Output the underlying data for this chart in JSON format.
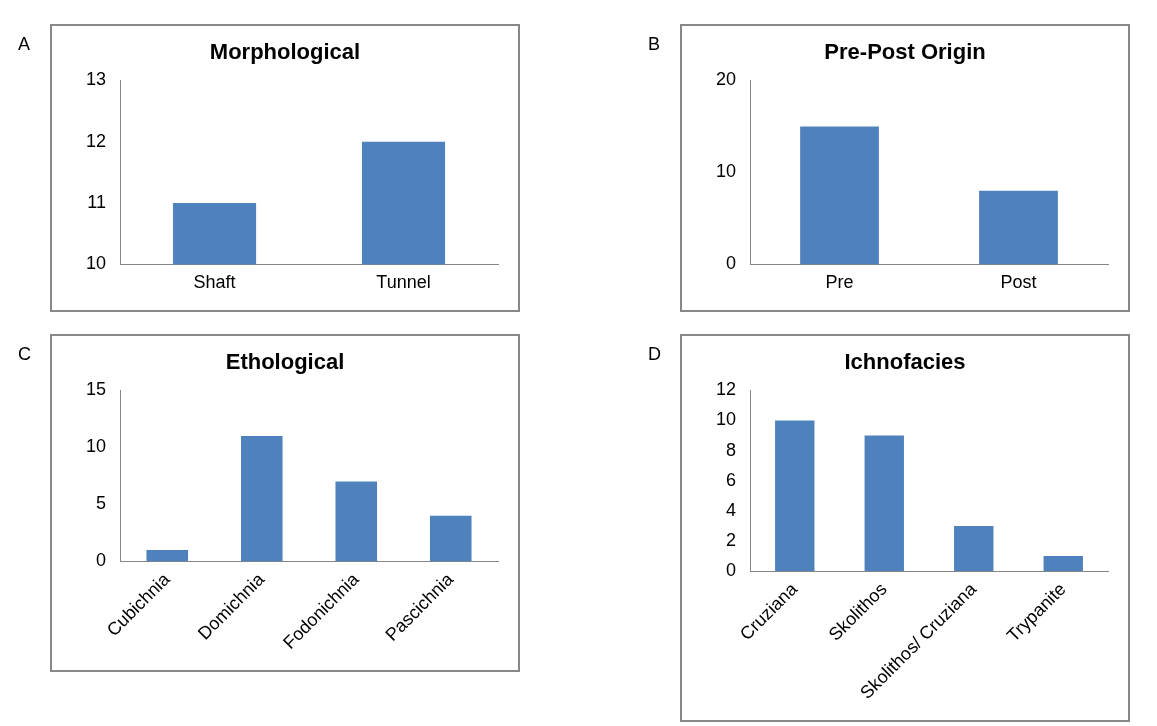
{
  "chart_data": [
    {
      "type": "bar",
      "title": "Morphological",
      "annotations": [
        "A"
      ],
      "categories": [
        "Shaft",
        "Tunnel"
      ],
      "values": [
        11,
        12
      ],
      "color": "#4f81bd",
      "ylim": [
        10,
        13
      ],
      "yticks": [
        10,
        11,
        12,
        13
      ],
      "grid": false,
      "legend": false
    },
    {
      "type": "bar",
      "title": "Pre-Post Origin",
      "annotations": [
        "B"
      ],
      "categories": [
        "Pre",
        "Post"
      ],
      "values": [
        15,
        8
      ],
      "color": "#4f81bd",
      "ylim": [
        0,
        20
      ],
      "yticks": [
        0,
        10,
        20
      ],
      "grid": false,
      "legend": false
    },
    {
      "type": "bar",
      "title": "Ethological",
      "annotations": [
        "C"
      ],
      "categories": [
        "Cubichnia",
        "Domichnia",
        "Fodonichnia",
        "Pascichnia"
      ],
      "values": [
        1,
        11,
        7,
        4
      ],
      "color": "#4f81bd",
      "ylim": [
        0,
        15
      ],
      "yticks": [
        0,
        5,
        10,
        15
      ],
      "grid": false,
      "legend": false
    },
    {
      "type": "bar",
      "title": "Ichnofacies",
      "annotations": [
        "D"
      ],
      "categories": [
        "Cruziana",
        "Skolithos",
        "Skolithos/ Cruziana",
        "Trypanite"
      ],
      "values": [
        10,
        9,
        3,
        1
      ],
      "color": "#4f81bd",
      "ylim": [
        0,
        12
      ],
      "yticks": [
        0,
        2,
        4,
        6,
        8,
        10,
        12
      ],
      "grid": false,
      "legend": false
    }
  ]
}
